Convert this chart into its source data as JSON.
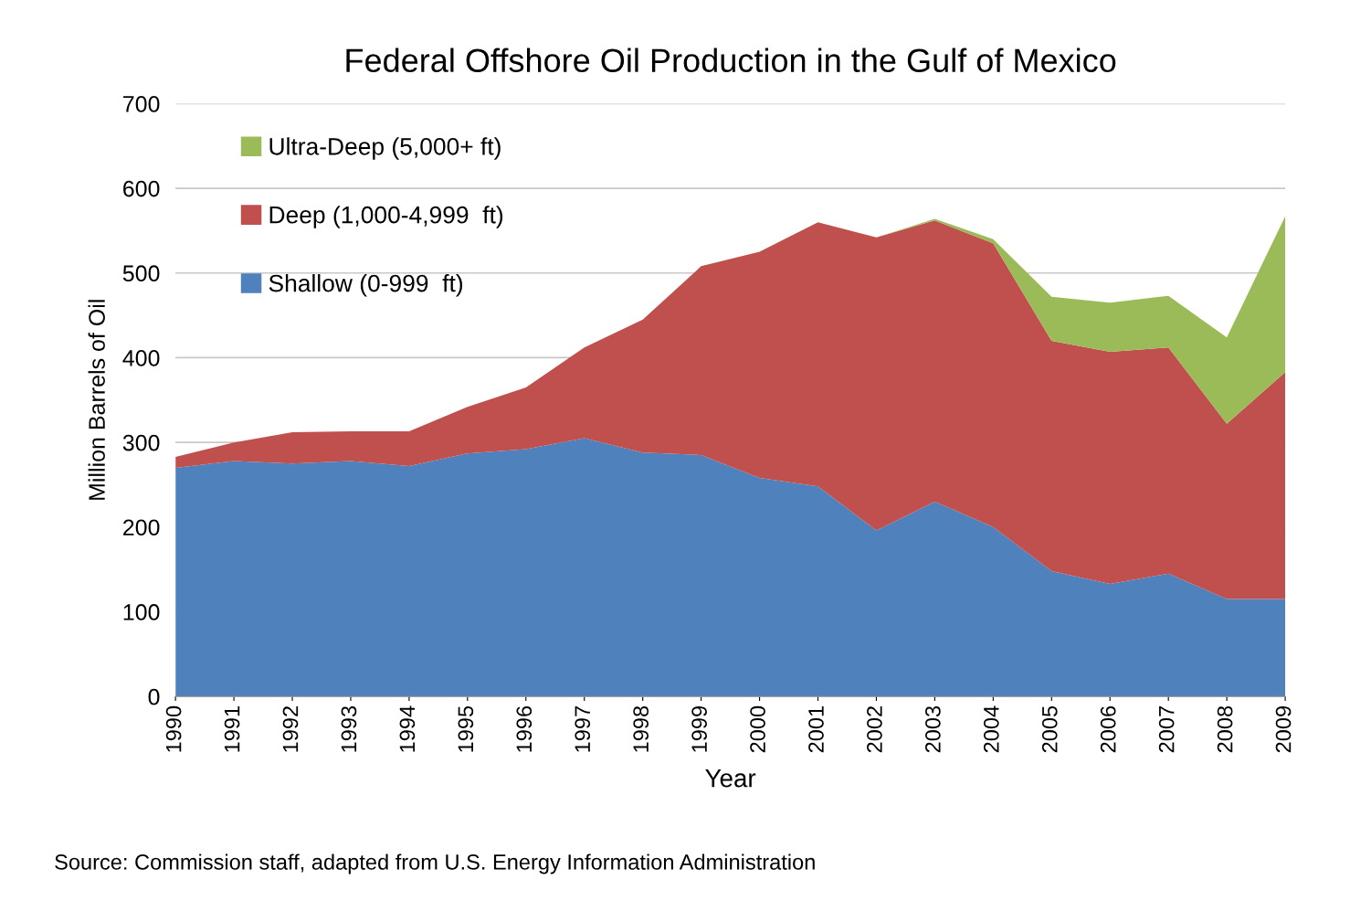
{
  "chart_data": {
    "type": "area",
    "title": "Federal Offshore Oil Production in the Gulf of Mexico",
    "xlabel": "Year",
    "ylabel": "Million Barrels of Oil",
    "categories": [
      "1990",
      "1991",
      "1992",
      "1993",
      "1994",
      "1995",
      "1996",
      "1997",
      "1998",
      "1999",
      "2000",
      "2001",
      "2002",
      "2003",
      "2004",
      "2005",
      "2006",
      "2007",
      "2008",
      "2009"
    ],
    "stacked": true,
    "series": [
      {
        "name": "Shallow (0-999  ft)",
        "color": "#4f81bd",
        "values": [
          270,
          278,
          275,
          278,
          272,
          287,
          292,
          305,
          288,
          285,
          258,
          248,
          196,
          230,
          200,
          148,
          133,
          145,
          115,
          115
        ]
      },
      {
        "name": "Deep (1,000-4,999  ft)",
        "color": "#c0504d",
        "values": [
          13,
          22,
          37,
          35,
          41,
          55,
          73,
          107,
          157,
          223,
          267,
          312,
          346,
          332,
          335,
          272,
          274,
          267,
          207,
          268
        ]
      },
      {
        "name": "Ultra-Deep (5,000+ ft)",
        "color": "#9bbb59",
        "values": [
          0,
          0,
          0,
          0,
          0,
          0,
          0,
          0,
          0,
          0,
          0,
          0,
          0,
          2,
          5,
          52,
          58,
          61,
          102,
          184
        ]
      }
    ],
    "ylim": [
      0,
      700
    ],
    "yticks": [
      0,
      100,
      200,
      300,
      400,
      500,
      600,
      700
    ],
    "grid": "y",
    "legend": "top left",
    "annotations": [
      "Source: Commission staff, adapted from U.S. Energy Information Administration"
    ]
  }
}
